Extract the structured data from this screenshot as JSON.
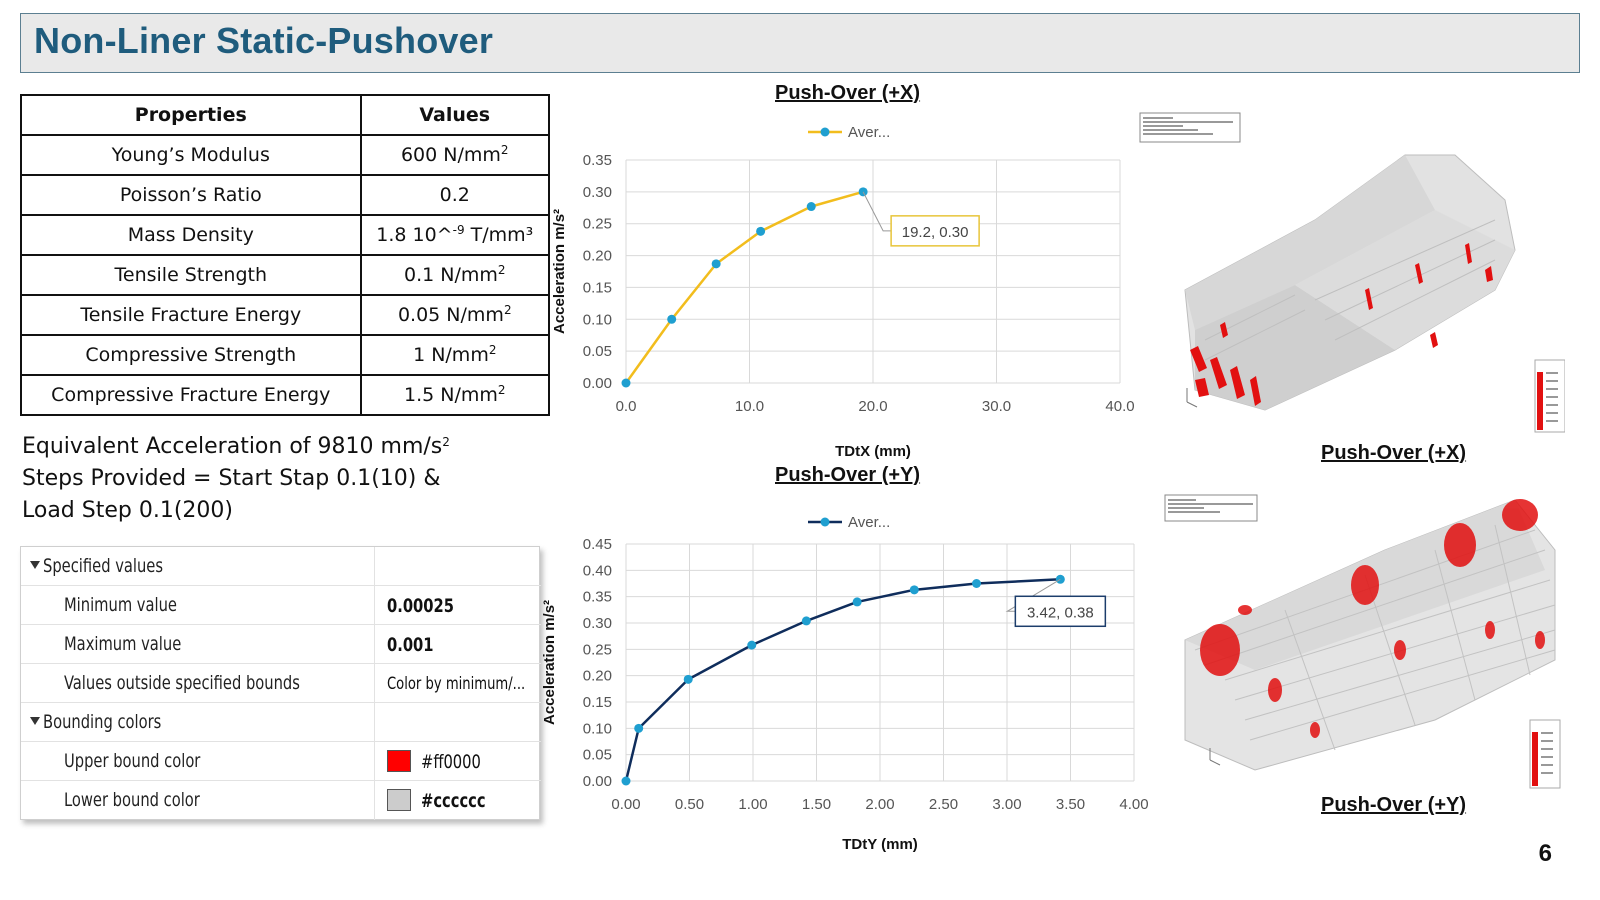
{
  "slide": {
    "title": "Non-Liner Static-Pushover",
    "page_number": "6"
  },
  "properties_table": {
    "headers": [
      "Properties",
      "Values"
    ],
    "rows": [
      {
        "property": "Young’s Modulus",
        "value": "600 N/mm",
        "sup": "2",
        "tail": ""
      },
      {
        "property": "Poisson’s Ratio",
        "value": "0.2",
        "sup": "",
        "tail": ""
      },
      {
        "property": "Mass Density",
        "value": "1.8 10^",
        "sup": "-9",
        "tail": " T/mm³"
      },
      {
        "property": "Tensile Strength",
        "value": "0.1 N/mm",
        "sup": "2",
        "tail": ""
      },
      {
        "property": "Tensile Fracture Energy",
        "value": "0.05 N/mm",
        "sup": "2",
        "tail": ""
      },
      {
        "property": "Compressive Strength",
        "value": "1 N/mm",
        "sup": "2",
        "tail": ""
      },
      {
        "property": "Compressive Fracture Energy",
        "value": "1.5 N/mm",
        "sup": "2",
        "tail": ""
      }
    ]
  },
  "notes": {
    "line1": "Equivalent Acceleration of 9810 mm/s",
    "line1_sup": "2",
    "line2": "Steps Provided = Start Stap 0.1(10) &",
    "line3": "Load Step 0.1(200)"
  },
  "property_panel": {
    "group1": "Specified values",
    "min_label": "Minimum value",
    "min_value": "0.00025",
    "max_label": "Maximum value",
    "max_value": "0.001",
    "outside_label": "Values outside specified bounds",
    "outside_value": "Color by minimum/...",
    "group2": "Bounding colors",
    "upper_label": "Upper bound color",
    "upper_value": "#ff0000",
    "lower_label": "Lower bound color",
    "lower_value": "#cccccc",
    "upper_color": "#ff0000",
    "lower_color": "#cccccc"
  },
  "chart_data": [
    {
      "type": "line",
      "title": "Push-Over (+X)",
      "xlabel": "TDtX (mm)",
      "ylabel": "Acceleration m/s²",
      "legend": "Aver...",
      "legend_position": "top",
      "color": "#f2bd1d",
      "marker_color": "#1f9fd0",
      "x": [
        0.0,
        3.7,
        7.3,
        10.9,
        15.0,
        19.2
      ],
      "y": [
        0.0,
        0.1,
        0.187,
        0.238,
        0.277,
        0.3
      ],
      "xlim": [
        0,
        40
      ],
      "ylim": [
        0,
        0.35
      ],
      "xticks": [
        "0.0",
        "10.0",
        "20.0",
        "30.0",
        "40.0"
      ],
      "yticks": [
        "0.00",
        "0.05",
        "0.10",
        "0.15",
        "0.20",
        "0.25",
        "0.30",
        "0.35"
      ],
      "grid": true,
      "annotation": {
        "text": "19.2, 0.30",
        "x": 19.2,
        "y": 0.3,
        "border": "#e8c53a"
      }
    },
    {
      "type": "line",
      "title": "Push-Over (+Y)",
      "xlabel": "TDtY (mm)",
      "ylabel": "Acceleration m/s²",
      "legend": "Aver...",
      "legend_position": "top",
      "color": "#0f2d5c",
      "marker_color": "#1f9fd0",
      "x": [
        0.0,
        0.1,
        0.49,
        0.99,
        1.42,
        1.82,
        2.27,
        2.76,
        3.42
      ],
      "y": [
        0.0,
        0.1,
        0.193,
        0.258,
        0.304,
        0.34,
        0.363,
        0.375,
        0.383
      ],
      "xlim": [
        0,
        4
      ],
      "ylim": [
        0,
        0.45
      ],
      "xticks": [
        "0.00",
        "0.50",
        "1.00",
        "1.50",
        "2.00",
        "2.50",
        "3.00",
        "3.50",
        "4.00"
      ],
      "yticks": [
        "0.00",
        "0.05",
        "0.10",
        "0.15",
        "0.20",
        "0.25",
        "0.30",
        "0.35",
        "0.40",
        "0.45"
      ],
      "grid": true,
      "annotation": {
        "text": "3.42, 0.38",
        "x": 3.42,
        "y": 0.383,
        "border": "#1c3d6b"
      }
    }
  ],
  "models": {
    "caption_x": "Push-Over (+X)",
    "caption_y": "Push-Over (+Y)",
    "model_color": "#cccccc",
    "damage_color": "#ff0000"
  }
}
